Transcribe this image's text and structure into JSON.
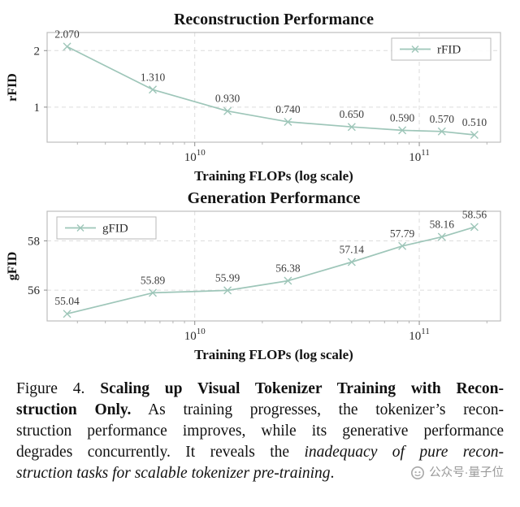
{
  "chart_data": [
    {
      "id": "reconstruction",
      "type": "line",
      "title": "Reconstruction Performance",
      "xlabel": "Training FLOPs (log scale)",
      "ylabel": "rFID",
      "legend": {
        "label": "rFID",
        "position": "top-right"
      },
      "line_color": "#9ec6b9",
      "x": [
        2700000000.0,
        6500000000.0,
        14000000000.0,
        26000000000.0,
        50000000000.0,
        84000000000.0,
        126000000000.0,
        176000000000.0
      ],
      "values": [
        2.07,
        1.31,
        0.93,
        0.74,
        0.65,
        0.59,
        0.57,
        0.51
      ],
      "point_labels": [
        "2.070",
        "1.310",
        "0.930",
        "0.740",
        "0.650",
        "0.590",
        "0.570",
        "0.510"
      ],
      "yticks": [
        1,
        2
      ],
      "ylim": [
        0.38,
        2.32
      ],
      "xlim": [
        2200000000.0,
        230000000000.0
      ],
      "xticks": [
        {
          "value": 10000000000.0,
          "base": "10",
          "exp": "10"
        },
        {
          "value": 100000000000.0,
          "base": "10",
          "exp": "11"
        }
      ],
      "grid": true
    },
    {
      "id": "generation",
      "type": "line",
      "title": "Generation Performance",
      "xlabel": "Training FLOPs (log scale)",
      "ylabel": "gFID",
      "legend": {
        "label": "gFID",
        "position": "top-left"
      },
      "line_color": "#9ec6b9",
      "x": [
        2700000000.0,
        6500000000.0,
        14000000000.0,
        26000000000.0,
        50000000000.0,
        84000000000.0,
        126000000000.0,
        176000000000.0
      ],
      "values": [
        55.04,
        55.89,
        55.99,
        56.38,
        57.14,
        57.79,
        58.16,
        58.56
      ],
      "point_labels": [
        "55.04",
        "55.89",
        "55.99",
        "56.38",
        "57.14",
        "57.79",
        "58.16",
        "58.56"
      ],
      "yticks": [
        56,
        58
      ],
      "ylim": [
        54.75,
        59.2
      ],
      "xlim": [
        2200000000.0,
        230000000000.0
      ],
      "xticks": [
        {
          "value": 10000000000.0,
          "base": "10",
          "exp": "10"
        },
        {
          "value": 100000000000.0,
          "base": "10",
          "exp": "11"
        }
      ],
      "grid": true
    }
  ],
  "caption": {
    "lines": [
      [
        {
          "t": "Figure 4.  ",
          "s": "n"
        },
        {
          "t": "Scaling up Visual Tokenizer Training with Recon-",
          "s": "b"
        }
      ],
      [
        {
          "t": "struction Only.",
          "s": "b"
        },
        {
          "t": "  As training progresses, the tokenizer’s recon-",
          "s": "n"
        }
      ],
      [
        {
          "t": "struction performance improves, while its generative performance",
          "s": "n"
        }
      ],
      [
        {
          "t": "degrades concurrently.  It reveals the ",
          "s": "n"
        },
        {
          "t": "inadequacy of pure recon-",
          "s": "i"
        }
      ],
      [
        {
          "t": "struction tasks for scalable tokenizer pre-training",
          "s": "i"
        },
        {
          "t": ".",
          "s": "n"
        }
      ]
    ],
    "watermark": {
      "text": "公众号·量子位",
      "icon": "qbitai-logo"
    }
  }
}
